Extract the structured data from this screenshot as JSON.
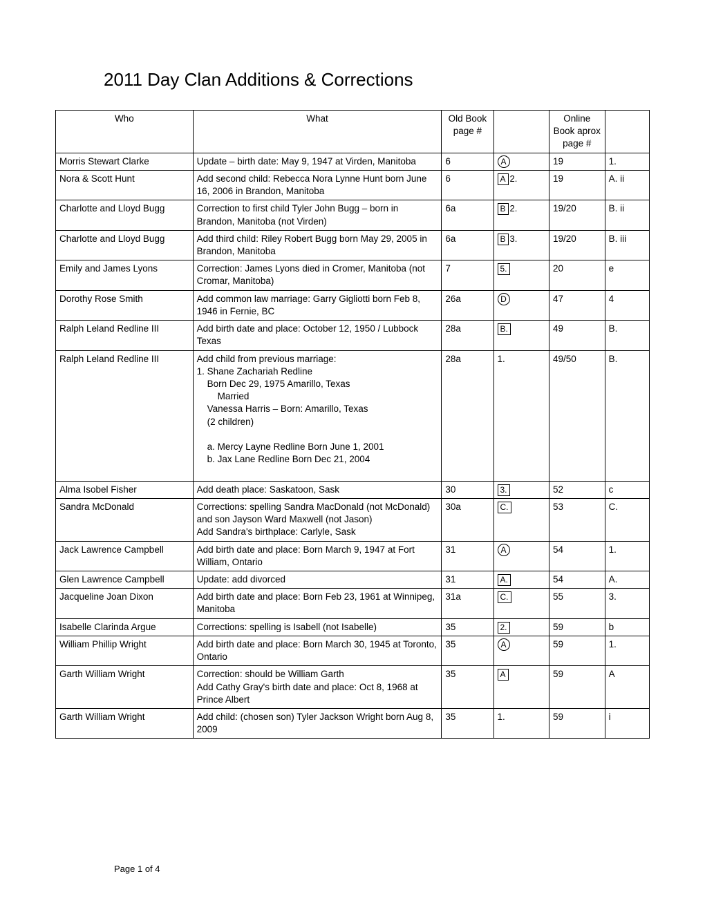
{
  "title": "2011 Day Clan Additions & Corrections",
  "columns": {
    "who": "Who",
    "what": "What",
    "oldbook": "Old Book page #",
    "ref1": "",
    "online": "Online Book aprox page #",
    "ref2": ""
  },
  "rows": [
    {
      "who": "Morris Stewart Clarke",
      "what": "Update – birth date: May 9, 1947 at Virden, Manitoba",
      "old": "6",
      "ref1": {
        "style": "circle",
        "text": "A",
        "after": ""
      },
      "online": "19",
      "ref2": "1."
    },
    {
      "who": "Nora & Scott Hunt",
      "what": "Add second child: Rebecca Nora Lynne Hunt born June 16, 2006 in Brandon, Manitoba",
      "old": "6",
      "ref1": {
        "style": "box",
        "text": "A",
        "after": "2."
      },
      "online": "19",
      "ref2": "A. ii"
    },
    {
      "who": "Charlotte and Lloyd Bugg",
      "what": "Correction to first child Tyler John Bugg – born in Brandon, Manitoba (not Virden)",
      "old": "6a",
      "ref1": {
        "style": "box",
        "text": "B",
        "after": "2."
      },
      "online": "19/20",
      "ref2": "B. ii"
    },
    {
      "who": "Charlotte and Lloyd Bugg",
      "what": "Add third child: Riley Robert Bugg born May 29, 2005 in Brandon, Manitoba",
      "old": "6a",
      "ref1": {
        "style": "box",
        "text": "B",
        "after": "3."
      },
      "online": "19/20",
      "ref2": "B. iii"
    },
    {
      "who": "Emily and James Lyons",
      "what": "Correction: James Lyons died in Cromer, Manitoba (not Cromar, Manitoba)",
      "old": "7",
      "ref1": {
        "style": "box",
        "text": "5.",
        "after": ""
      },
      "online": "20",
      "ref2": "e"
    },
    {
      "who": "Dorothy Rose Smith",
      "what": "Add common law marriage: Garry Gigliotti born Feb 8, 1946 in Fernie, BC",
      "old": "26a",
      "ref1": {
        "style": "circle",
        "text": "D",
        "after": ""
      },
      "online": "47",
      "ref2": "4"
    },
    {
      "who": "Ralph Leland Redline III",
      "what": "Add birth date and place: October 12, 1950 / Lubbock Texas",
      "old": "28a",
      "ref1": {
        "style": "box",
        "text": "B.",
        "after": ""
      },
      "online": "49",
      "ref2": "B."
    },
    {
      "who": "Ralph Leland Redline III",
      "what_multi": {
        "lines": [
          {
            "cls": "",
            "text": "Add child from previous marriage:"
          },
          {
            "cls": "",
            "text": "1.  Shane Zachariah Redline"
          },
          {
            "cls": "sub",
            "text": "Born Dec 29, 1975   Amarillo, Texas"
          },
          {
            "cls": "sub2",
            "text": "Married"
          },
          {
            "cls": "sub",
            "text": "Vanessa Harris – Born:  Amarillo, Texas"
          },
          {
            "cls": "sub",
            "text": "(2 children)"
          },
          {
            "cls": "",
            "text": " "
          },
          {
            "cls": "sub",
            "text": "a. Mercy Layne Redline Born June 1, 2001"
          },
          {
            "cls": "sub",
            "text": "b. Jax Lane Redline        Born Dec 21, 2004"
          },
          {
            "cls": "",
            "text": " "
          }
        ]
      },
      "old": "28a",
      "ref1": {
        "style": "plain",
        "text": "1.",
        "after": ""
      },
      "online": "49/50",
      "ref2": "B."
    },
    {
      "who": "Alma Isobel Fisher",
      "what": "Add death place: Saskatoon, Sask",
      "old": "30",
      "ref1": {
        "style": "box",
        "text": "3.",
        "after": ""
      },
      "online": "52",
      "ref2": "c"
    },
    {
      "who": "Sandra McDonald",
      "what": "Corrections: spelling Sandra MacDonald (not McDonald) and son Jayson Ward Maxwell (not Jason)\nAdd Sandra's birthplace: Carlyle, Sask",
      "old": "30a",
      "ref1": {
        "style": "box",
        "text": "C.",
        "after": ""
      },
      "online": "53",
      "ref2": "C."
    },
    {
      "who": "Jack Lawrence Campbell",
      "what": "Add birth date and place: Born March 9, 1947 at Fort William, Ontario",
      "old": "31",
      "ref1": {
        "style": "circle",
        "text": "A",
        "after": ""
      },
      "online": "54",
      "ref2": "1."
    },
    {
      "who": "Glen Lawrence Campbell",
      "what": "Update: add divorced",
      "old": "31",
      "ref1": {
        "style": "box",
        "text": "A.",
        "after": ""
      },
      "online": "54",
      "ref2": "A."
    },
    {
      "who": "Jacqueline Joan Dixon",
      "what": "Add birth date and place: Born Feb 23, 1961 at Winnipeg, Manitoba",
      "old": "31a",
      "ref1": {
        "style": "box",
        "text": "C.",
        "after": ""
      },
      "online": "55",
      "ref2": "3."
    },
    {
      "who": "Isabelle Clarinda Argue",
      "what": "Corrections: spelling is Isabell (not Isabelle)",
      "old": "35",
      "ref1": {
        "style": "box",
        "text": "2.",
        "after": ""
      },
      "online": "59",
      "ref2": "b"
    },
    {
      "who": "William Phillip Wright",
      "what": "Add birth date and place: Born March 30, 1945 at Toronto, Ontario",
      "old": "35",
      "ref1": {
        "style": "circle",
        "text": "A",
        "after": ""
      },
      "online": "59",
      "ref2": "1."
    },
    {
      "who": "Garth William Wright",
      "what": "Correction: should be William Garth\nAdd Cathy Gray's birth date and place: Oct 8, 1968 at Prince Albert",
      "old": "35",
      "ref1": {
        "style": "box",
        "text": "A",
        "after": ""
      },
      "online": "59",
      "ref2": "A"
    },
    {
      "who": "Garth William Wright",
      "what": "Add child: (chosen son) Tyler Jackson Wright born Aug 8, 2009",
      "old": "35",
      "ref1": {
        "style": "plain",
        "text": "1.",
        "after": ""
      },
      "online": "59",
      "ref2": "i"
    }
  ],
  "footer": "Page 1 of 4"
}
